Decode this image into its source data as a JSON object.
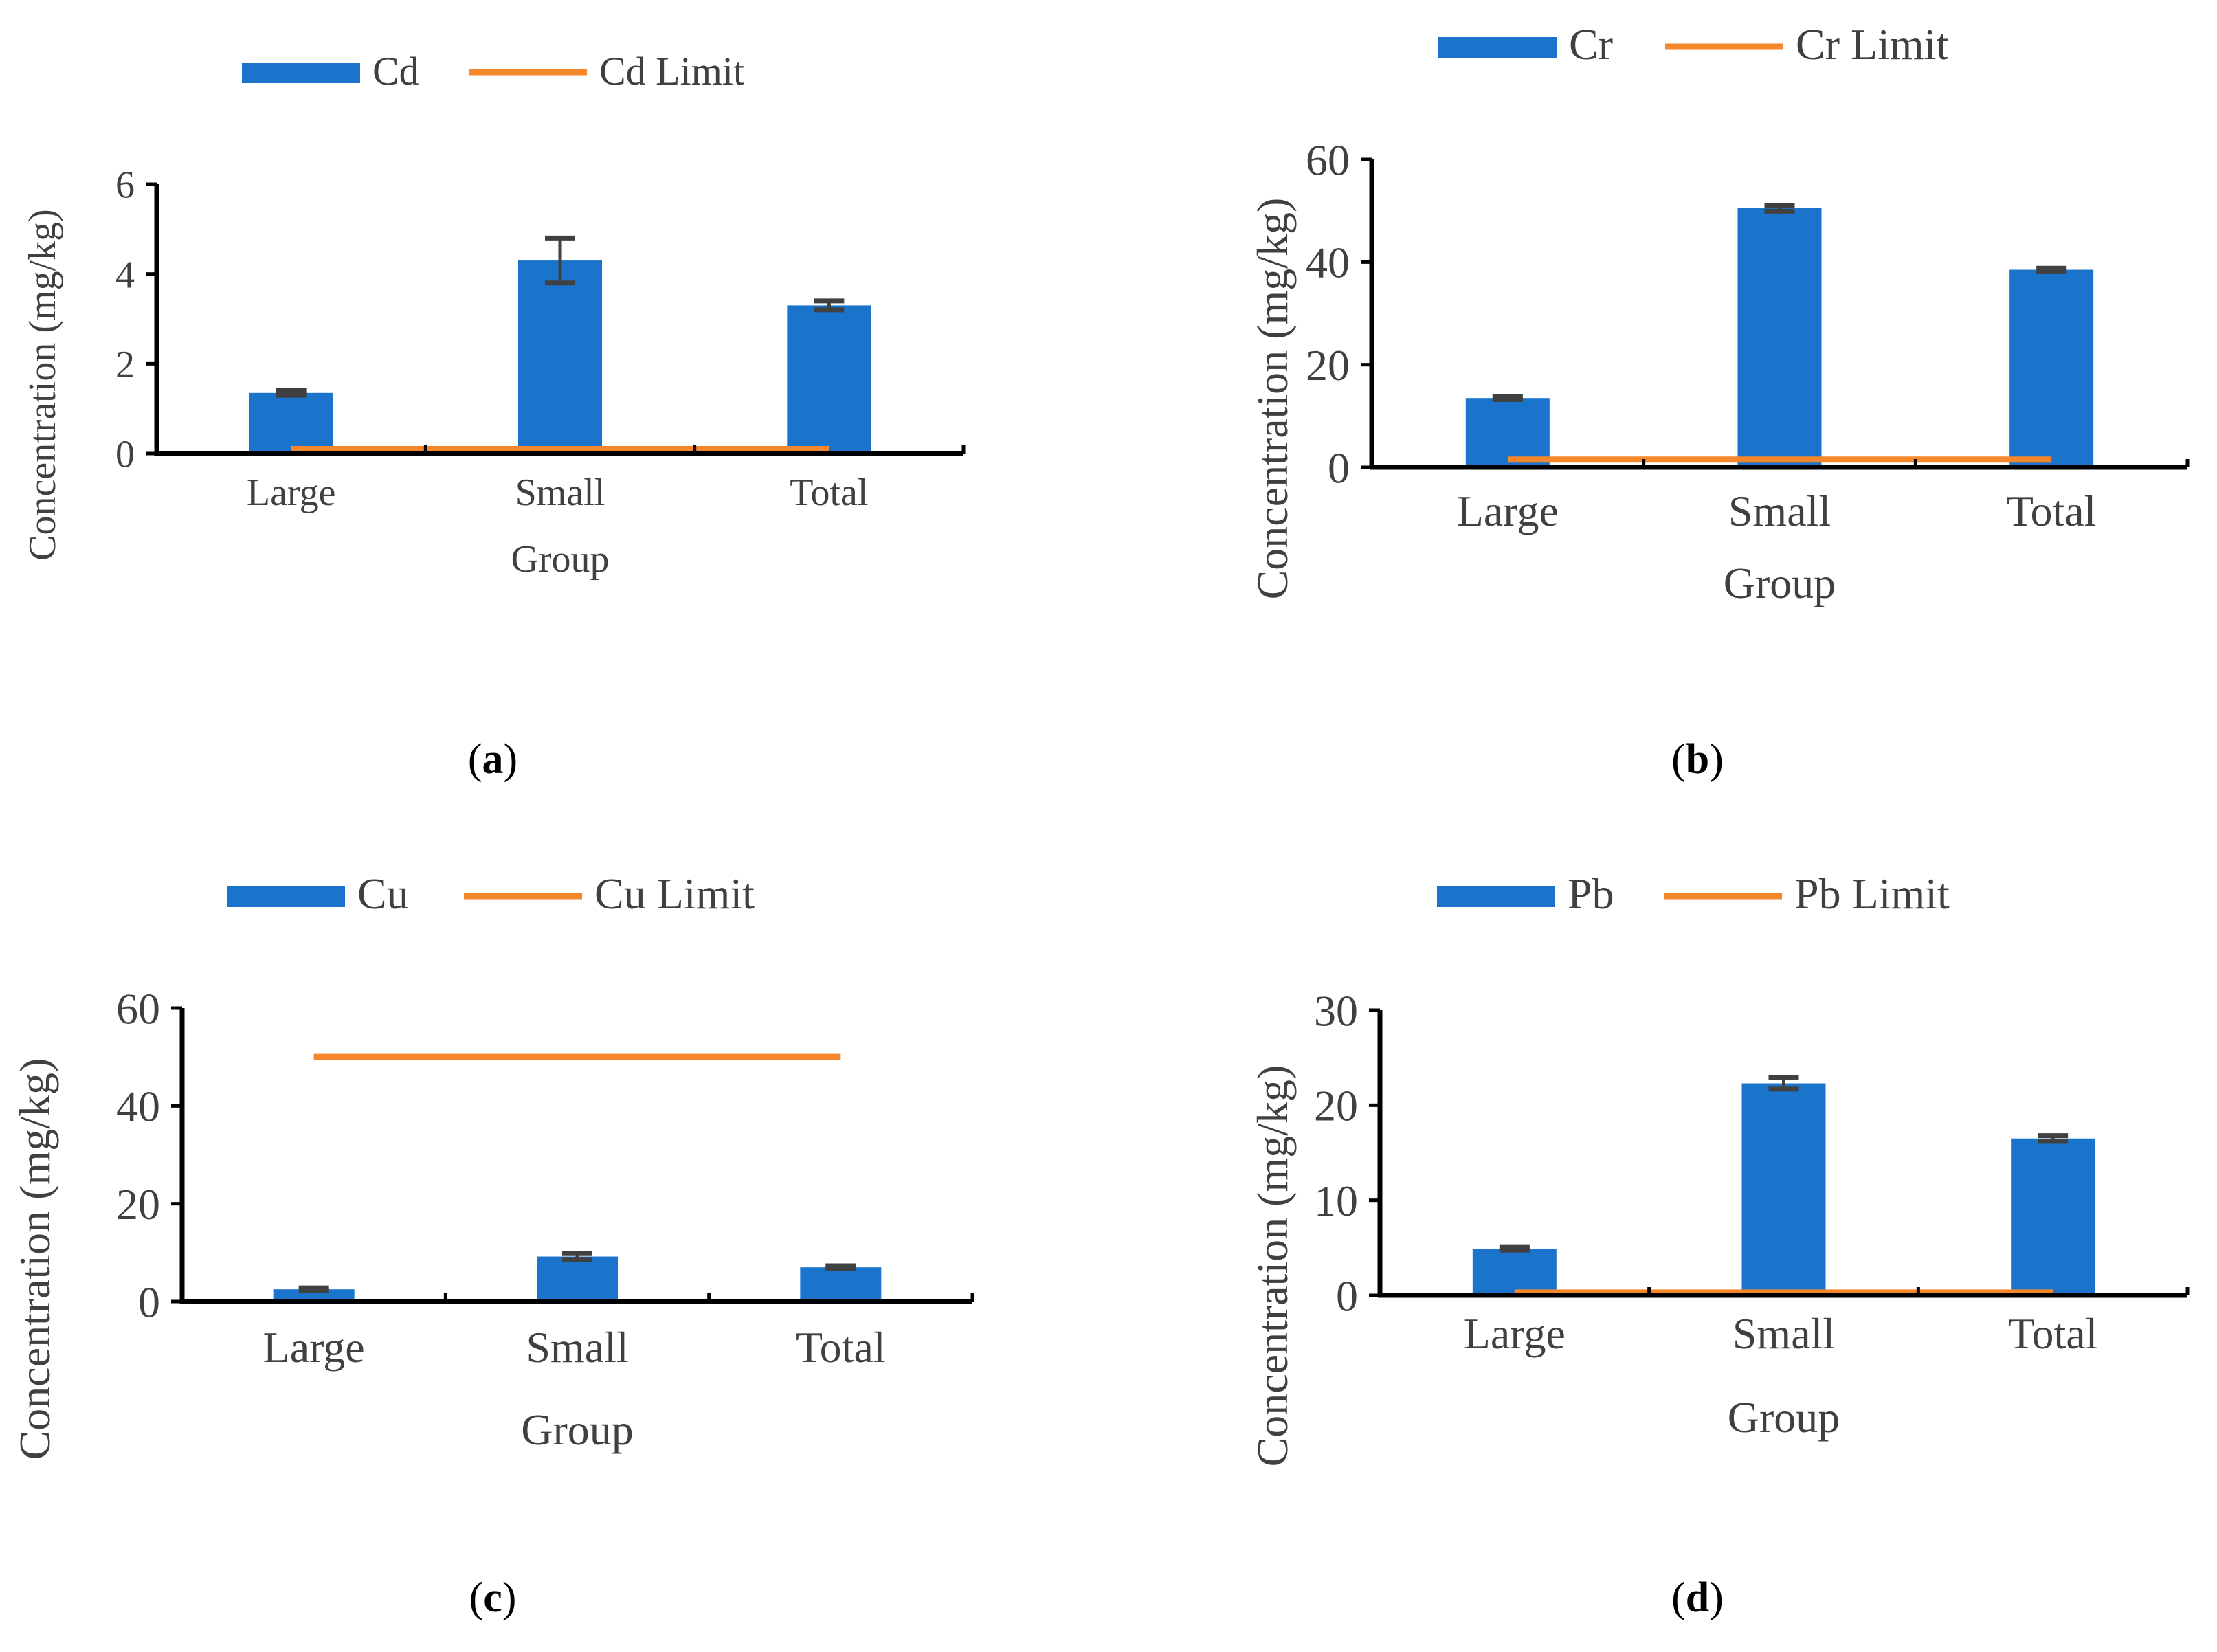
{
  "colors": {
    "bar": "#1b74cc",
    "limit": "#f5862a",
    "axis": "#000000",
    "error": "#404040",
    "text": "#404040"
  },
  "chart_data": [
    {
      "id": "a",
      "type": "bar",
      "caption": "a",
      "categories": [
        "Large",
        "Small",
        "Total"
      ],
      "series": [
        {
          "name": "Cd",
          "values": [
            1.35,
            4.3,
            3.3
          ],
          "errors": [
            0.05,
            0.5,
            0.1
          ]
        },
        {
          "name": "Cd Limit",
          "kind": "line",
          "values": [
            0.1,
            0.1,
            0.1
          ]
        }
      ],
      "xlabel": "Group",
      "ylabel": "Concentration (mg/kg)",
      "ylim": [
        0,
        6
      ],
      "yticks": [
        "0",
        "2",
        "4",
        "6"
      ],
      "ytick_values": [
        0,
        2,
        4,
        6
      ]
    },
    {
      "id": "b",
      "type": "bar",
      "caption": "b",
      "categories": [
        "Large",
        "Small",
        "Total"
      ],
      "series": [
        {
          "name": "Cr",
          "values": [
            13.5,
            50.5,
            38.5
          ],
          "errors": [
            0.3,
            0.6,
            0.3
          ]
        },
        {
          "name": "Cr Limit",
          "kind": "line",
          "values": [
            1.5,
            1.5,
            1.5
          ]
        }
      ],
      "xlabel": "Group",
      "ylabel": "Concentration (mg/kg)",
      "ylim": [
        0,
        60
      ],
      "yticks": [
        "0",
        "20",
        "40",
        "60"
      ],
      "ytick_values": [
        0,
        20,
        40,
        60
      ]
    },
    {
      "id": "c",
      "type": "bar",
      "caption": "c",
      "categories": [
        "Large",
        "Small",
        "Total"
      ],
      "series": [
        {
          "name": "Cu",
          "values": [
            2.5,
            9.2,
            7.0
          ],
          "errors": [
            0.3,
            0.6,
            0.3
          ]
        },
        {
          "name": "Cu Limit",
          "kind": "line",
          "values": [
            50,
            50,
            50
          ]
        }
      ],
      "xlabel": "Group",
      "ylabel": "Concentration (mg/kg)",
      "ylim": [
        0,
        60
      ],
      "yticks": [
        "0",
        "20",
        "40",
        "60"
      ],
      "ytick_values": [
        0,
        20,
        40,
        60
      ]
    },
    {
      "id": "d",
      "type": "bar",
      "caption": "d",
      "categories": [
        "Large",
        "Small",
        "Total"
      ],
      "series": [
        {
          "name": "Pb",
          "values": [
            4.9,
            22.3,
            16.5
          ],
          "errors": [
            0.15,
            0.6,
            0.3
          ]
        },
        {
          "name": "Pb Limit",
          "kind": "line",
          "values": [
            0.3,
            0.3,
            0.3
          ]
        }
      ],
      "xlabel": "Group",
      "ylabel": "Concentration (mg/kg)",
      "ylim": [
        0,
        30
      ],
      "yticks": [
        "0",
        "10",
        "20",
        "30"
      ],
      "ytick_values": [
        0,
        10,
        20,
        30
      ]
    }
  ]
}
